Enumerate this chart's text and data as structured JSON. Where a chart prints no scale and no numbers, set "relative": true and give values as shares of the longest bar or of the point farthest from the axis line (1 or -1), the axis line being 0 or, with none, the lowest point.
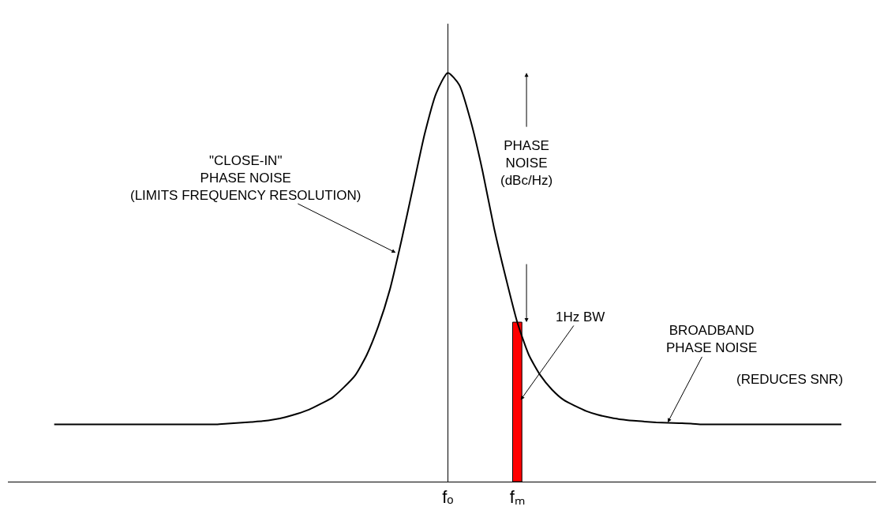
{
  "chart_data": {
    "type": "line",
    "relative": true,
    "tick_labels": "x",
    "marker": "none",
    "line_style": "solid",
    "categories": [
      null,
      null,
      null,
      null,
      null,
      null,
      null,
      null,
      null,
      null,
      null,
      null,
      null,
      null,
      null,
      null,
      null,
      null,
      null,
      null,
      null,
      null,
      null,
      null,
      null,
      null,
      null,
      null,
      null,
      null,
      null,
      null,
      null,
      null,
      "fₒ",
      null,
      null,
      null,
      null,
      null,
      "fₘ",
      null,
      null,
      null,
      null,
      null,
      null,
      null,
      null,
      null,
      null,
      null,
      null,
      null,
      null,
      null,
      null,
      null,
      null,
      null,
      null,
      null,
      null,
      null,
      null,
      null,
      null,
      null,
      null
    ],
    "series": [
      {
        "color": "#000000",
        "values": [
          0.14,
          0.14,
          0.14,
          0.14,
          0.14,
          0.14,
          0.14,
          0.14,
          0.14,
          0.14,
          0.14,
          0.14,
          0.14,
          0.14,
          0.14,
          0.142,
          0.144,
          0.146,
          0.148,
          0.152,
          0.158,
          0.166,
          0.176,
          0.19,
          0.205,
          0.23,
          0.26,
          0.31,
          0.38,
          0.47,
          0.59,
          0.72,
          0.85,
          0.95,
          1.0,
          0.97,
          0.88,
          0.76,
          0.62,
          0.5,
          0.39,
          0.31,
          0.26,
          0.225,
          0.2,
          0.185,
          0.172,
          0.163,
          0.157,
          0.152,
          0.149,
          0.147,
          0.145,
          0.144,
          0.143,
          0.142,
          0.14,
          0.14,
          0.14,
          0.14,
          0.14,
          0.14,
          0.14,
          0.14,
          0.14,
          0.14,
          0.14,
          0.14,
          0.14
        ]
      },
      {
        "type": "bar",
        "color": "#ff0000",
        "values": [
          null,
          null,
          null,
          null,
          null,
          null,
          null,
          null,
          null,
          null,
          null,
          null,
          null,
          null,
          null,
          null,
          null,
          null,
          null,
          null,
          null,
          null,
          null,
          null,
          null,
          null,
          null,
          null,
          null,
          null,
          null,
          null,
          null,
          null,
          null,
          null,
          null,
          null,
          null,
          null,
          0.39,
          null,
          null,
          null,
          null,
          null,
          null,
          null,
          null,
          null,
          null,
          null,
          null,
          null,
          null,
          null,
          null,
          null,
          null,
          null,
          null,
          null,
          null,
          null,
          null,
          null,
          null,
          null,
          null
        ]
      }
    ],
    "annotations": [
      "\"CLOSE-IN\"\nPHASE NOISE\n(LIMITS FREQUENCY RESOLUTION)",
      "PHASE\nNOISE\n(dBc/Hz)",
      "1Hz BW",
      "BROADBAND\nPHASE NOISE",
      "(REDUCES SNR)"
    ]
  }
}
